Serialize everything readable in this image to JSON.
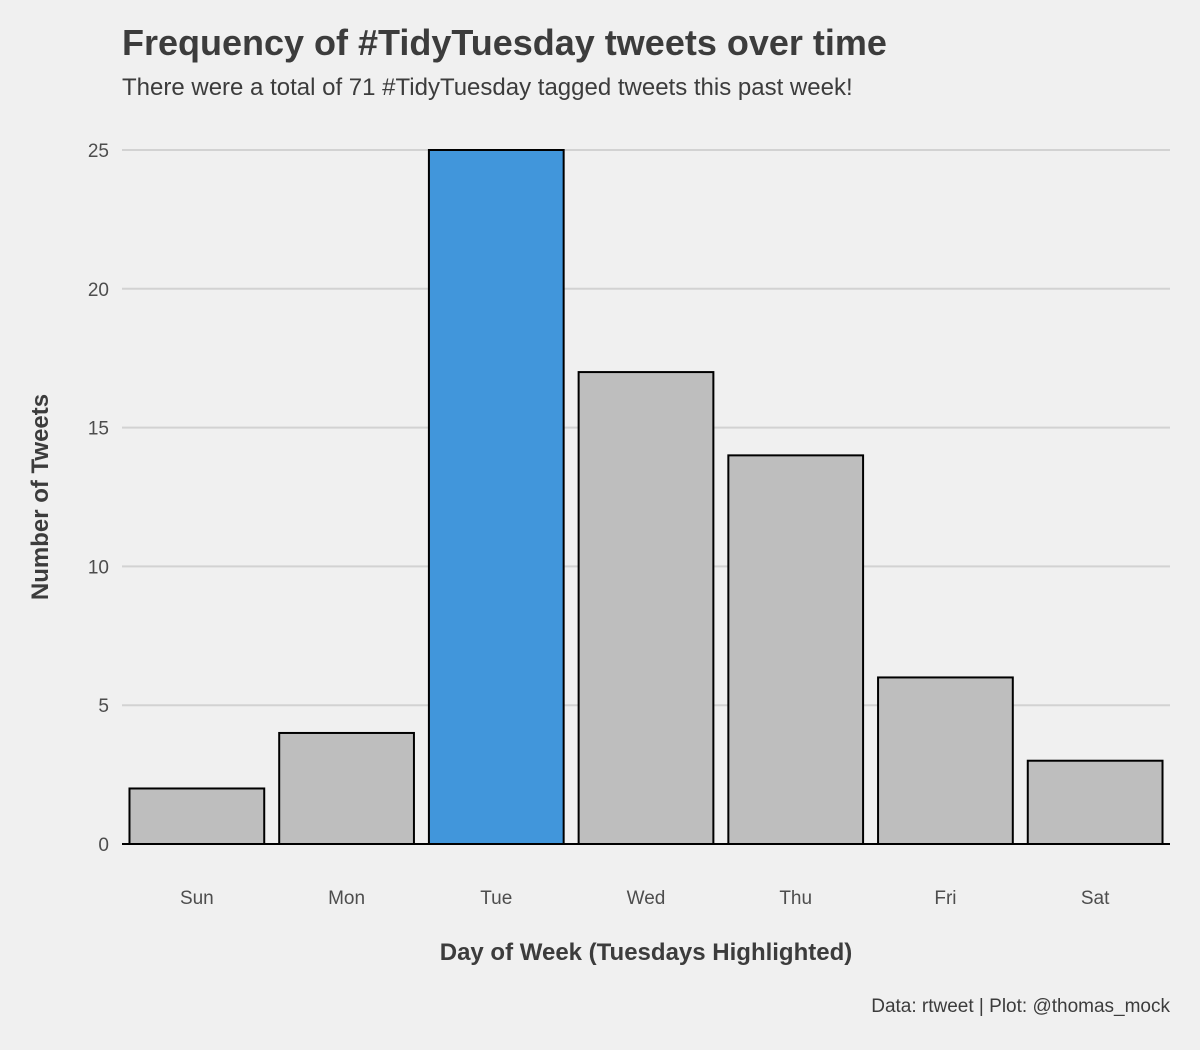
{
  "chart_data": {
    "type": "bar",
    "title": "Frequency of #TidyTuesday tweets over time",
    "subtitle": "There were a total of 71 #TidyTuesday tagged tweets this past week!",
    "caption": "Data: rtweet | Plot: @thomas_mock",
    "xlabel": "Day of Week (Tuesdays Highlighted)",
    "ylabel": "Number of Tweets",
    "categories": [
      "Sun",
      "Mon",
      "Tue",
      "Wed",
      "Thu",
      "Fri",
      "Sat"
    ],
    "values": [
      2,
      4,
      25,
      17,
      14,
      6,
      3
    ],
    "highlighted": "Tue",
    "ylim": [
      0,
      25
    ],
    "yticks": [
      0,
      5,
      10,
      15,
      20,
      25
    ],
    "grid": "horizontal",
    "legend": "none",
    "colors": {
      "highlight": "#4196db",
      "default": "#bebebe",
      "outline": "#000000",
      "grid": "#d2d2d2",
      "background": "#f0f0f0"
    }
  }
}
